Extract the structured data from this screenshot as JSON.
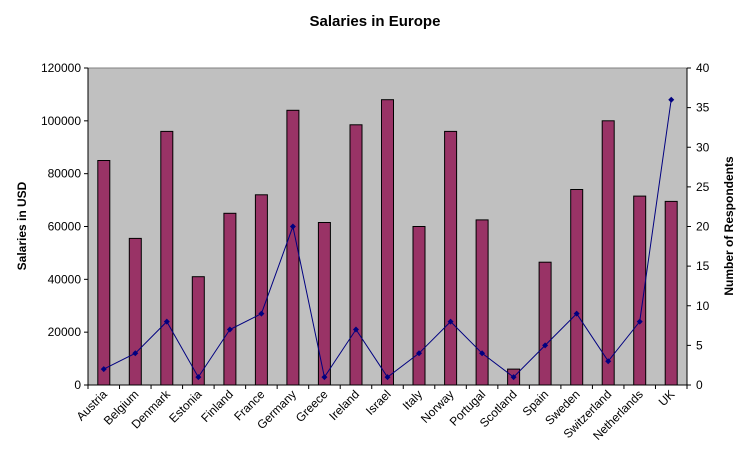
{
  "chart_data": {
    "type": "bar",
    "title": "Salaries in Europe",
    "ylabel": "Salaries in USD",
    "y2label": "Number of Respondents",
    "xlabel": "",
    "ylim": [
      0,
      120000
    ],
    "y2lim": [
      0,
      40
    ],
    "yticks": [
      0,
      20000,
      40000,
      60000,
      80000,
      100000,
      120000
    ],
    "y2ticks": [
      0,
      5,
      10,
      15,
      20,
      25,
      30,
      35,
      40
    ],
    "categories": [
      "Austria",
      "Belgium",
      "Denmark",
      "Estonia",
      "Finland",
      "France",
      "Germany",
      "Greece",
      "Ireland",
      "Israel",
      "Italy",
      "Norway",
      "Portugal",
      "Scotland",
      "Spain",
      "Sweden",
      "Switzerland",
      "Netherlands",
      "UK"
    ],
    "series": [
      {
        "type": "bar",
        "axis": "left",
        "values": [
          85000,
          55500,
          96000,
          41000,
          65000,
          72000,
          104000,
          61500,
          98500,
          108000,
          60000,
          96000,
          62500,
          6000,
          46500,
          74000,
          100000,
          71500,
          69500
        ]
      },
      {
        "type": "line",
        "axis": "right",
        "values": [
          2,
          4,
          8,
          1,
          7,
          9,
          20,
          1,
          7,
          1,
          4,
          8,
          4,
          1,
          5,
          9,
          3,
          8,
          36
        ]
      }
    ],
    "grid": false,
    "legend": "none",
    "colors": {
      "plot_background": "#c0c0c0",
      "bar_fill": "#993366",
      "bar_stroke": "#000000",
      "line": "#000080",
      "marker": "#000080"
    }
  }
}
